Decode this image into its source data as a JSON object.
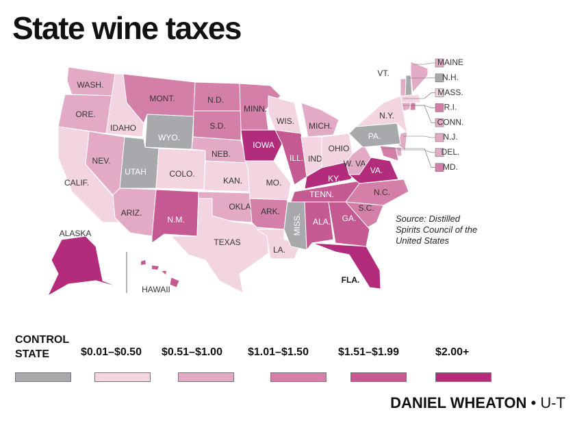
{
  "title": "State wine taxes",
  "legend": [
    {
      "label": "CONTROL STATE",
      "color": "#a7a9ac"
    },
    {
      "label": "$0.01–$0.50",
      "color": "#f3d5e2"
    },
    {
      "label": "$0.51–$1.00",
      "color": "#e3aac6"
    },
    {
      "label": "$1.01–$1.50",
      "color": "#d47fa8"
    },
    {
      "label": "$1.51–$1.99",
      "color": "#c55a92"
    },
    {
      "label": "$2.00+",
      "color": "#b32c7c"
    }
  ],
  "states": [
    {
      "label": "MAINE",
      "category": 2
    },
    {
      "label": "N.H.",
      "category": 0
    },
    {
      "label": "MASS.",
      "category": 1
    },
    {
      "label": "R.I.",
      "category": 3
    },
    {
      "label": "CONN.",
      "category": 2
    },
    {
      "label": "N.J.",
      "category": 2
    },
    {
      "label": "DEL.",
      "category": 2
    },
    {
      "label": "MD.",
      "category": 3
    },
    {
      "label": "WASH.",
      "category": 2
    },
    {
      "label": "ORE.",
      "category": 2
    },
    {
      "label": "CALIF.",
      "category": 1
    },
    {
      "label": "IDAHO",
      "category": 1
    },
    {
      "label": "NEV.",
      "category": 2
    },
    {
      "label": "UTAH",
      "category": 0
    },
    {
      "label": "ARIZ.",
      "category": 2
    },
    {
      "label": "MONT.",
      "category": 3
    },
    {
      "label": "WYO.",
      "category": 0
    },
    {
      "label": "COLO.",
      "category": 1
    },
    {
      "label": "N.M.",
      "category": 4
    },
    {
      "label": "N.D.",
      "category": 3
    },
    {
      "label": "S.D.",
      "category": 3
    },
    {
      "label": "NEB.",
      "category": 2
    },
    {
      "label": "KAN.",
      "category": 1
    },
    {
      "label": "OKLA.",
      "category": 2
    },
    {
      "label": "TEXAS",
      "category": 1
    },
    {
      "label": "MINN.",
      "category": 3
    },
    {
      "label": "IOWA",
      "category": 5
    },
    {
      "label": "MO.",
      "category": 1
    },
    {
      "label": "ARK.",
      "category": 3
    },
    {
      "label": "LA.",
      "category": 1
    },
    {
      "label": "WIS.",
      "category": 1
    },
    {
      "label": "ILL.",
      "category": 4
    },
    {
      "label": "MISS.",
      "category": 0
    },
    {
      "label": "MICH.",
      "category": 2
    },
    {
      "label": "IND.",
      "category": 1
    },
    {
      "label": "KY.",
      "category": 5
    },
    {
      "label": "TENN.",
      "category": 4
    },
    {
      "label": "ALA.",
      "category": 4
    },
    {
      "label": "OHIO",
      "category": 1
    },
    {
      "label": "W. VA",
      "category": 2
    },
    {
      "label": "VA.",
      "category": 5
    },
    {
      "label": "N.C.",
      "category": 3
    },
    {
      "label": "S.C.",
      "category": 3
    },
    {
      "label": "GA.",
      "category": 4
    },
    {
      "label": "FLA.",
      "category": 5
    },
    {
      "label": "PA.",
      "category": 0
    },
    {
      "label": "N.Y.",
      "category": 1
    },
    {
      "label": "VT.",
      "category": 2
    },
    {
      "label": "ALASKA",
      "category": 5
    },
    {
      "label": "HAWAII",
      "category": 4
    }
  ],
  "source": "Source: Distilled Spirits Council of the United States",
  "credit": "DANIEL WHEATON",
  "separator": "•",
  "outlet": "U-T"
}
